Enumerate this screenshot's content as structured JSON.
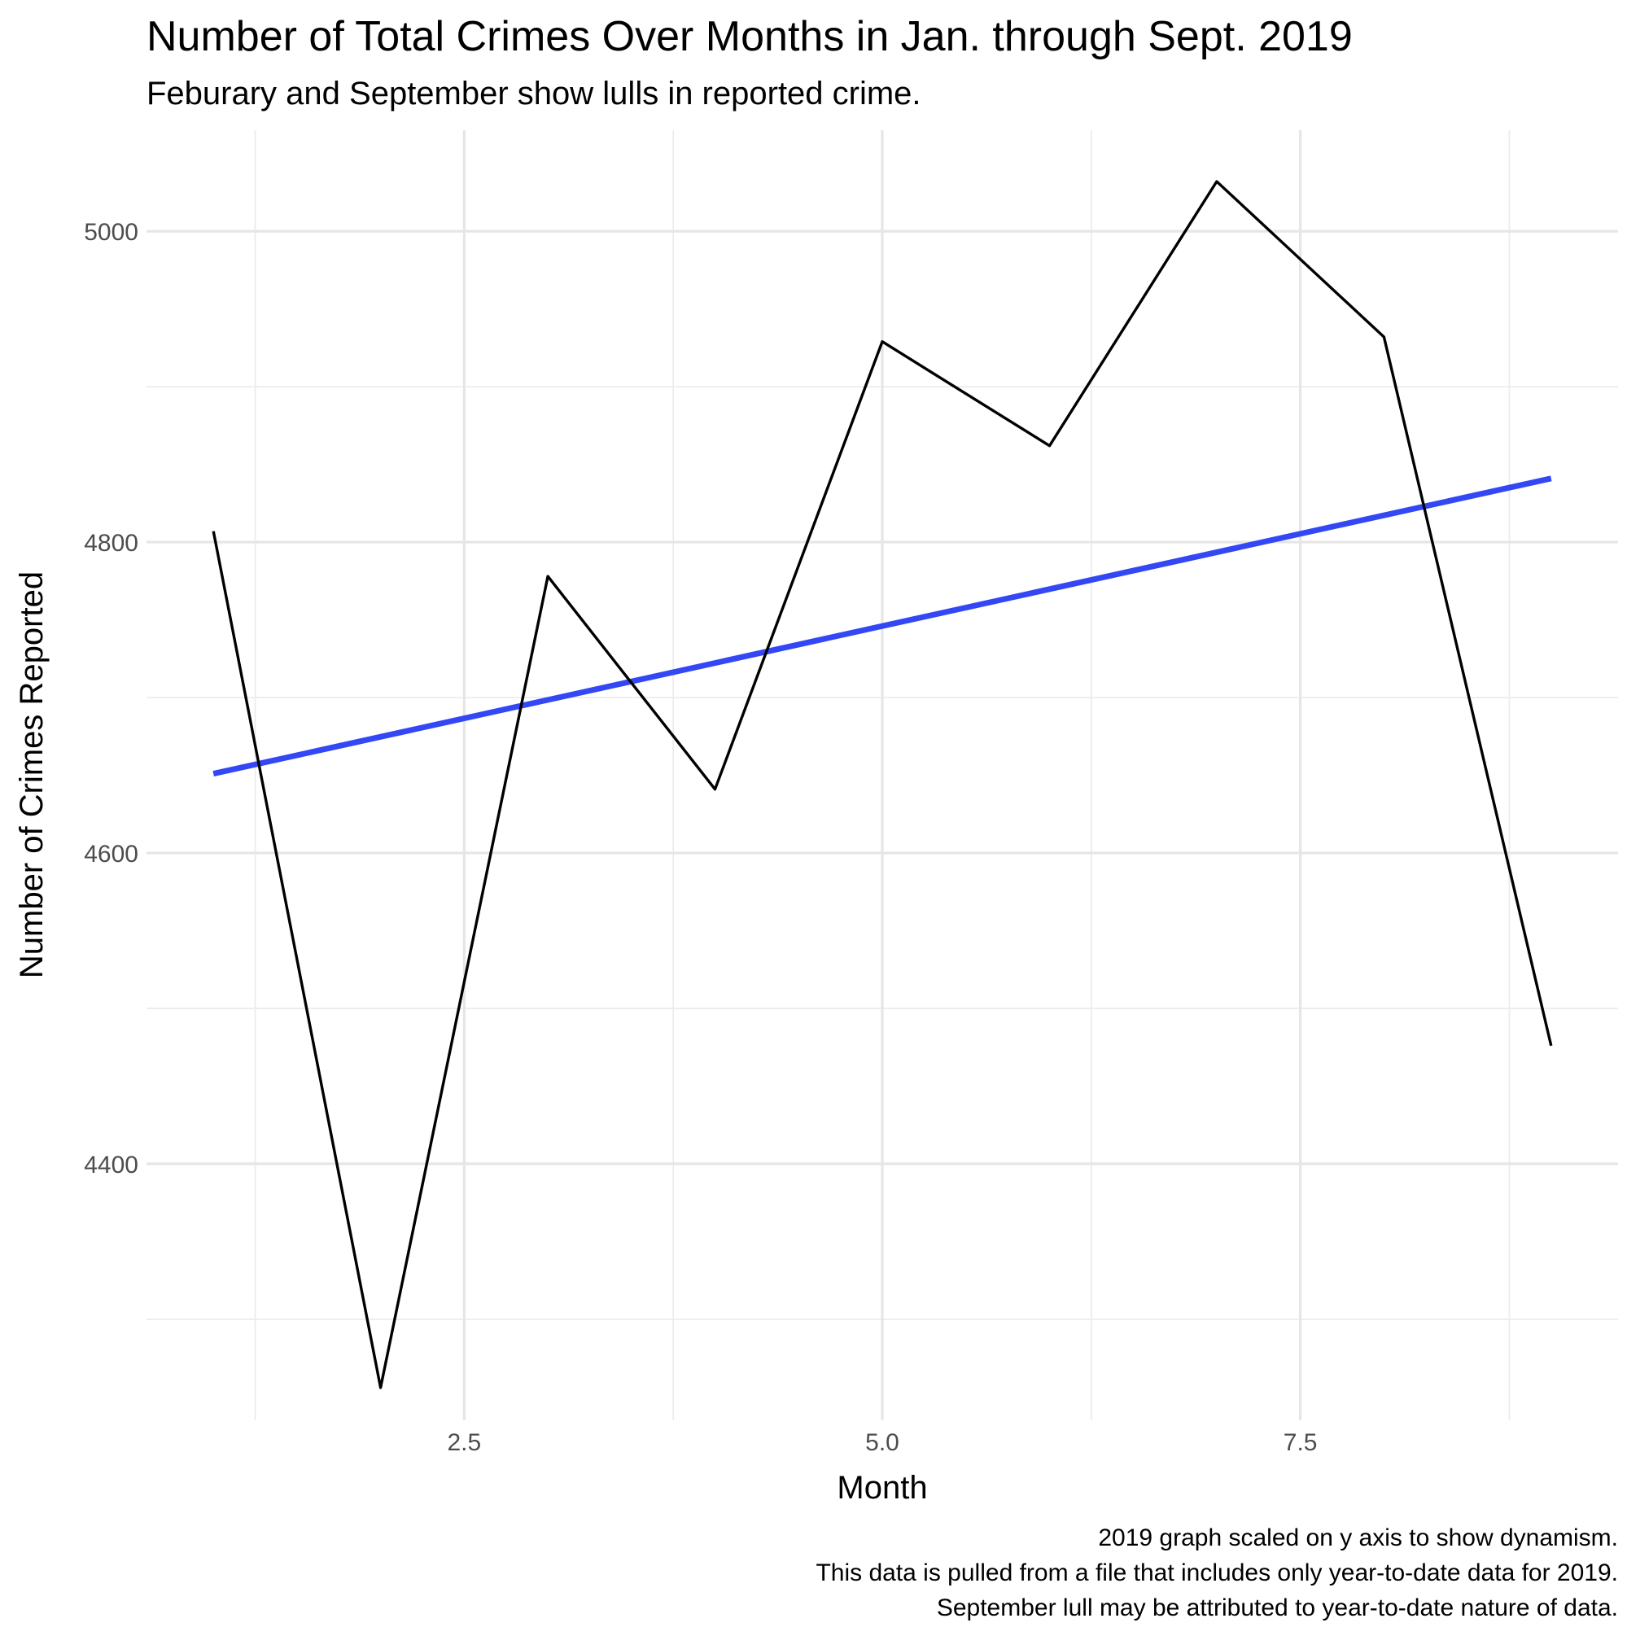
{
  "chart_data": {
    "type": "line",
    "title": "Number of Total Crimes Over Months in Jan. through Sept. 2019",
    "subtitle": "Feburary and September show lulls in reported crime.",
    "xlabel": "Month",
    "ylabel": "Number of Crimes Reported",
    "xlim": [
      0.6,
      9.4
    ],
    "ylim": [
      4235,
      5065
    ],
    "x_ticks": [
      2.5,
      5.0,
      7.5
    ],
    "x_tick_labels": [
      "2.5",
      "5.0",
      "7.5"
    ],
    "x_minor": [
      1.25,
      3.75,
      6.25,
      8.75
    ],
    "y_ticks": [
      4400,
      4600,
      4800,
      5000
    ],
    "y_tick_labels": [
      "4400",
      "4600",
      "4800",
      "5000"
    ],
    "y_minor": [
      4300,
      4500,
      4700,
      4900
    ],
    "grid": true,
    "series": [
      {
        "x": [
          1,
          2,
          3,
          4,
          5,
          6,
          7,
          8,
          9
        ],
        "values": [
          4807,
          4256,
          4778,
          4641,
          4929,
          4862,
          5032,
          4932,
          4476
        ],
        "color": "#000000"
      },
      {
        "x": [
          1,
          9
        ],
        "values": [
          4651,
          4841
        ],
        "color": "#3347f5"
      }
    ],
    "caption": [
      "2019 graph scaled on y axis to show dynamism.",
      "This data is pulled from a file that includes only year-to-date data for 2019.",
      "September lull may be attributed to year-to-date nature of data."
    ]
  }
}
